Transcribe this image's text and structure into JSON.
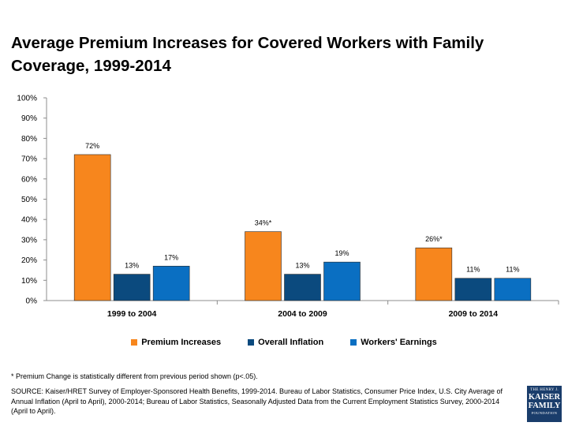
{
  "title": "Average Premium Increases for Covered Workers with Family Coverage, 1999-2014",
  "chart_data": {
    "type": "bar",
    "title": "Average Premium Increases for Covered Workers with Family Coverage, 1999-2014",
    "categories": [
      "1999 to 2004",
      "2004 to 2009",
      "2009 to 2014"
    ],
    "series": [
      {
        "name": "Premium Increases",
        "color": "#f7861d",
        "values": [
          72,
          34,
          26
        ],
        "labels": [
          "72%",
          "34%*",
          "26%*"
        ]
      },
      {
        "name": "Overall Inflation",
        "color": "#0b4a7e",
        "values": [
          13,
          13,
          11
        ],
        "labels": [
          "13%",
          "13%",
          "11%"
        ]
      },
      {
        "name": "Workers' Earnings",
        "color": "#0a6fc2",
        "values": [
          17,
          19,
          11
        ],
        "labels": [
          "17%",
          "19%",
          "11%"
        ]
      }
    ],
    "yticks": [
      "0%",
      "10%",
      "20%",
      "30%",
      "40%",
      "50%",
      "60%",
      "70%",
      "80%",
      "90%",
      "100%"
    ],
    "ylim": [
      0,
      100
    ],
    "xlabel": "",
    "ylabel": "",
    "grid": false,
    "legend_position": "bottom"
  },
  "footnote": "* Premium Change is statistically different from previous period shown (p<.05).",
  "source": "SOURCE:  Kaiser/HRET Survey of Employer-Sponsored Health Benefits, 1999-2014. Bureau of Labor Statistics, Consumer Price Index, U.S. City Average of Annual Inflation (April to April), 2000-2014; Bureau of Labor Statistics, Seasonally Adjusted Data from the Current Employment Statistics Survey, 2000-2014 (April to April).",
  "logo": {
    "line1": "THE HENRY J.",
    "line2": "KAISER",
    "line3": "FAMILY",
    "line4": "FOUNDATION",
    "bg_color": "#1a3d6b"
  }
}
